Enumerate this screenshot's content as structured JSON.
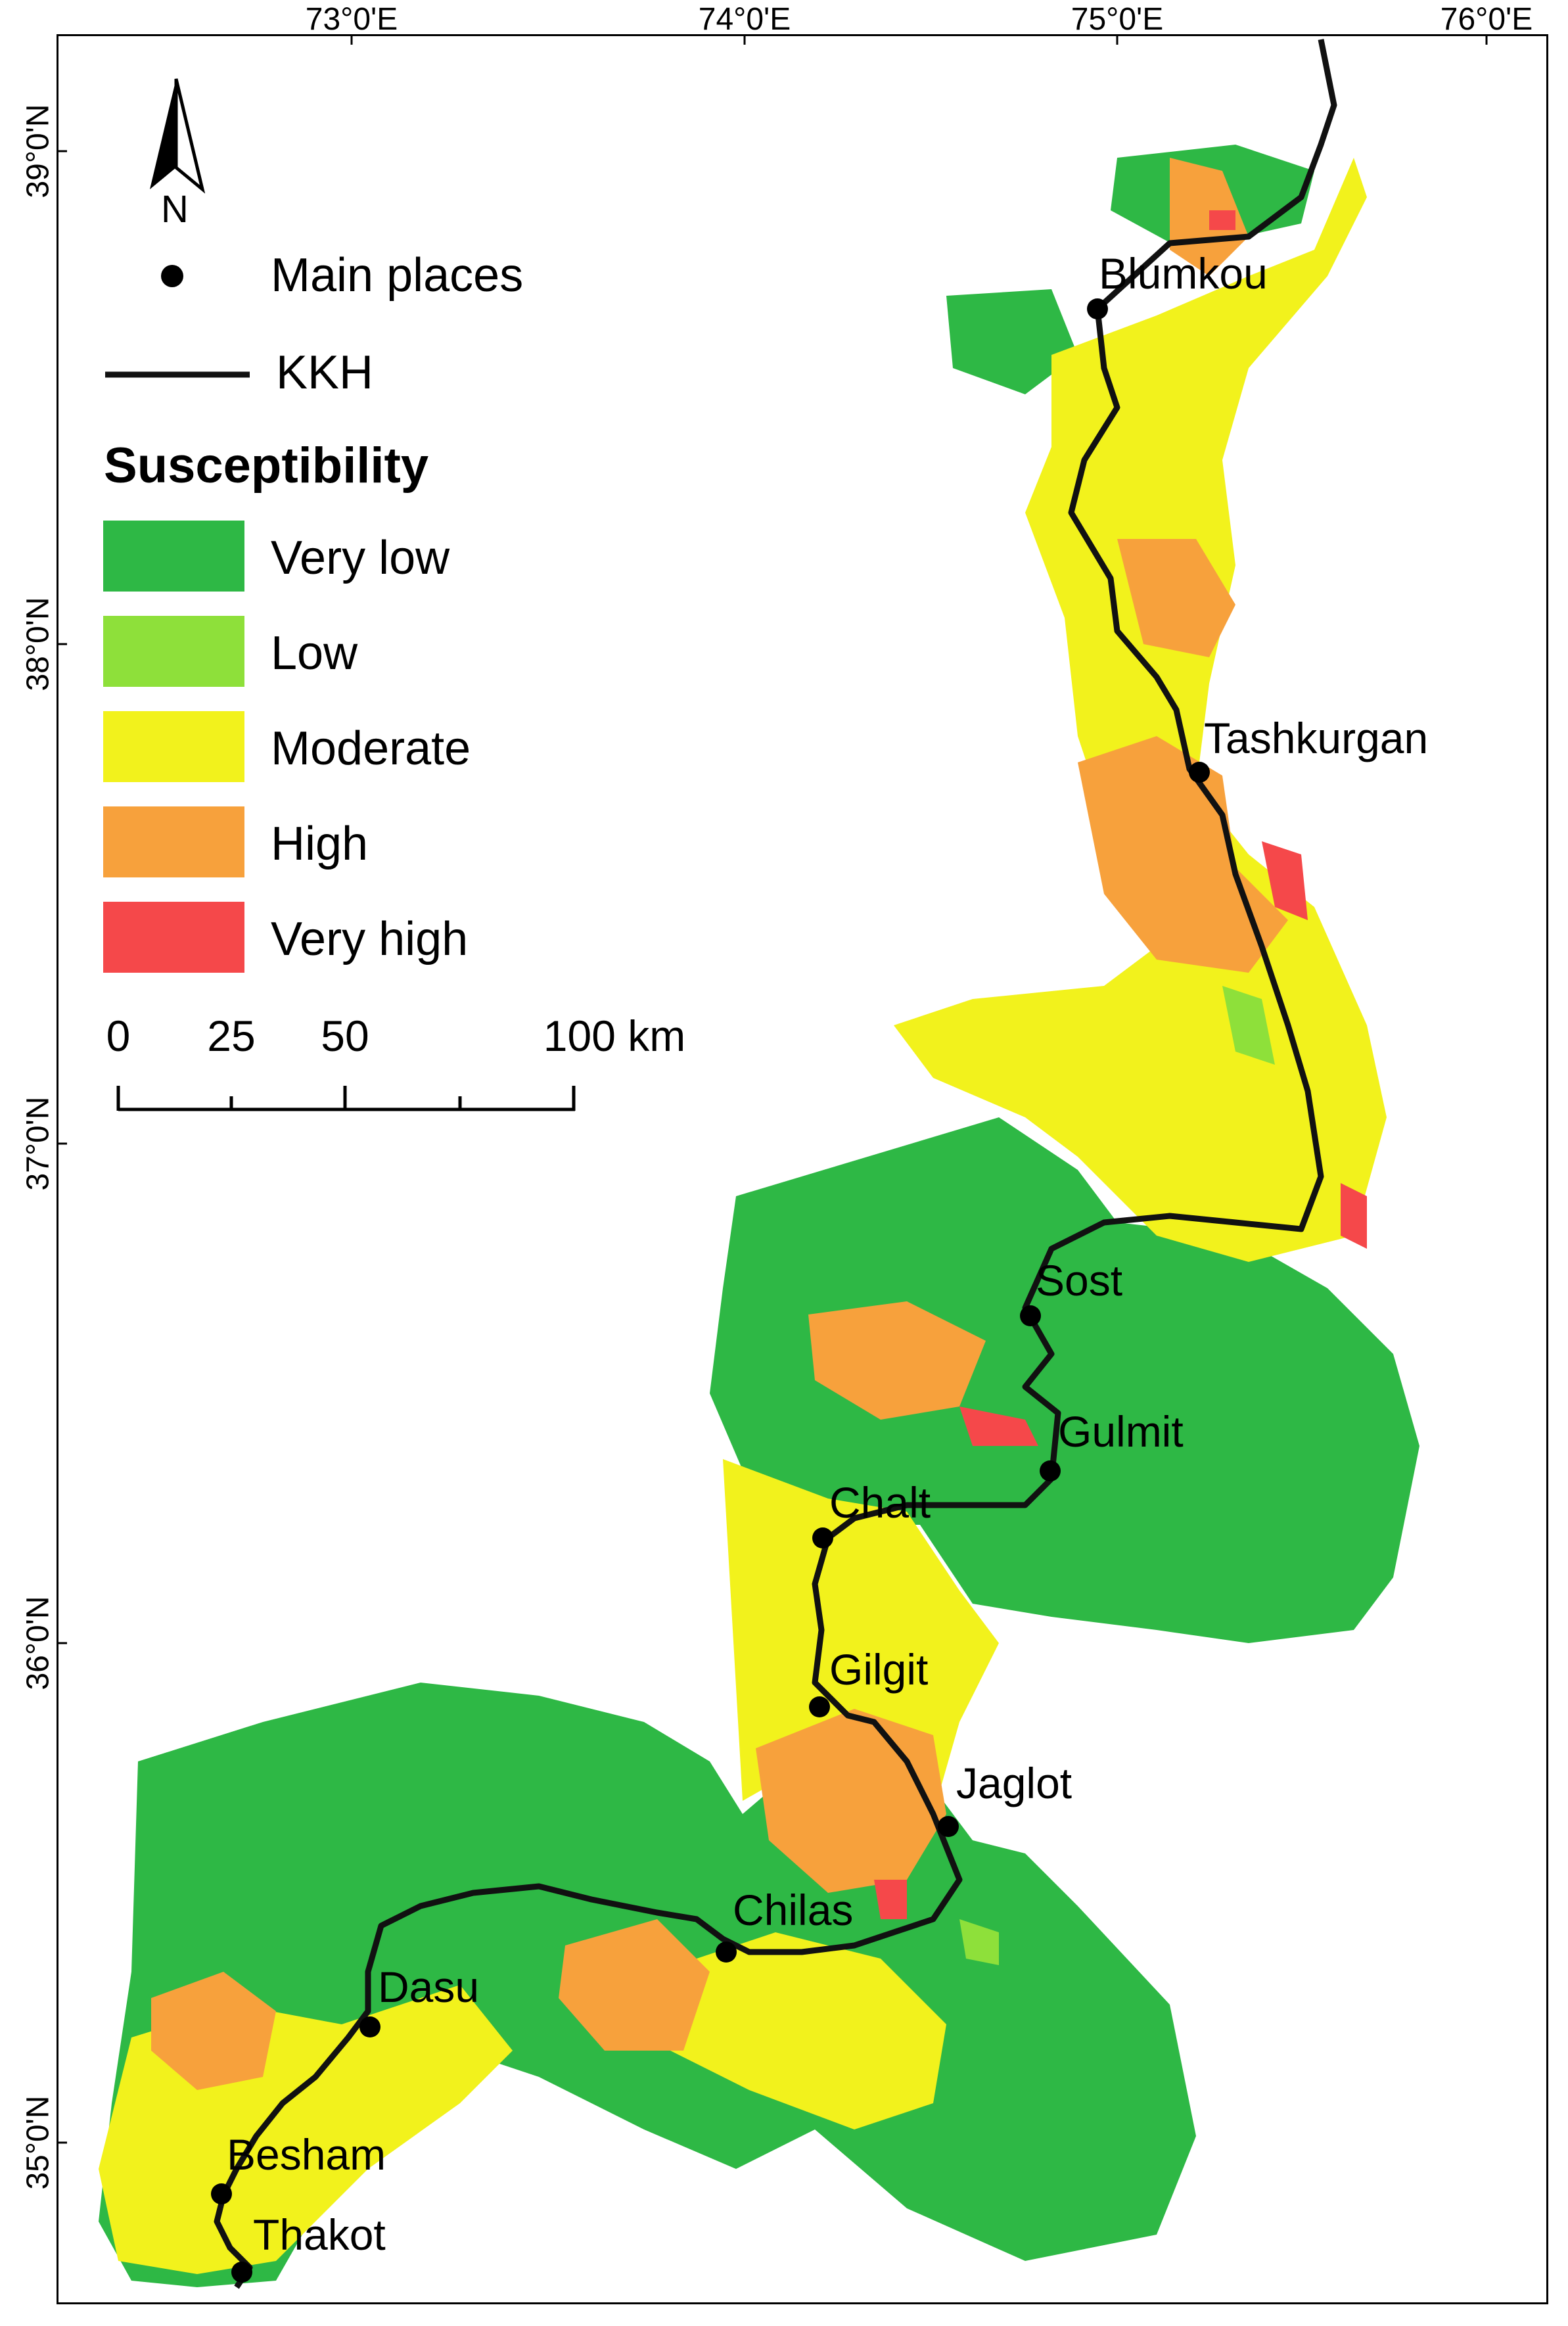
{
  "longitude_labels": [
    "73°0'E",
    "74°0'E",
    "75°0'E",
    "76°0'E"
  ],
  "latitude_labels": [
    "39°0'N",
    "38°0'N",
    "37°0'N",
    "36°0'N",
    "35°0'N"
  ],
  "north_arrow": {
    "label": "N",
    "icon": "north-arrow-icon"
  },
  "legend": {
    "main_places": "Main places",
    "road": "KKH",
    "title": "Susceptibility",
    "classes": [
      {
        "label": "Very low",
        "color": "#2eb845"
      },
      {
        "label": "Low",
        "color": "#8ee03a"
      },
      {
        "label": "Moderate",
        "color": "#f2f21c"
      },
      {
        "label": "High",
        "color": "#f7a13c"
      },
      {
        "label": "Very high",
        "color": "#f5484a"
      }
    ]
  },
  "scale_bar": {
    "ticks": [
      "0",
      "25",
      "50",
      "100 km"
    ]
  },
  "places": [
    "Blumkou",
    "Tashkurgan",
    "Sost",
    "Gulmit",
    "Chalt",
    "Gilgit",
    "Jaglot",
    "Chilas",
    "Dasu",
    "Besham",
    "Thakot"
  ]
}
